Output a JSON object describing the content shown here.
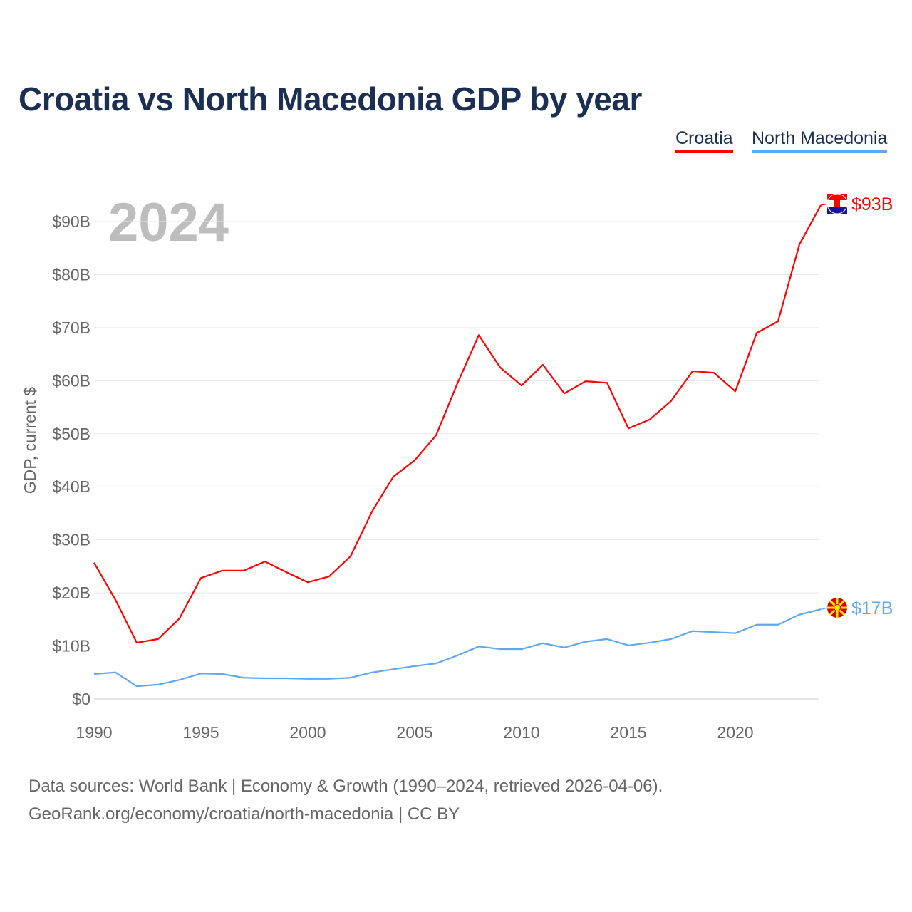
{
  "title": "Croatia vs North Macedonia GDP by year",
  "source_line1": "Data sources: World Bank | Economy & Growth (1990–2024, retrieved 2026-04-06).",
  "source_line2": "GeoRank.org/economy/croatia/north-macedonia | CC BY",
  "chart_data": {
    "type": "line",
    "title": "Croatia vs North Macedonia GDP by year",
    "ylabel": "GDP, current $",
    "xlabel": "",
    "year_label": "2024",
    "ylim": [
      0,
      95
    ],
    "xlim": [
      1990,
      2024
    ],
    "yticks": [
      0,
      10,
      20,
      30,
      40,
      50,
      60,
      70,
      80,
      90
    ],
    "ytick_labels": [
      "$0",
      "$10B",
      "$20B",
      "$30B",
      "$40B",
      "$50B",
      "$60B",
      "$70B",
      "$80B",
      "$90B"
    ],
    "xticks": [
      1990,
      1995,
      2000,
      2005,
      2010,
      2015,
      2020
    ],
    "xtick_labels": [
      "1990",
      "1995",
      "2000",
      "2005",
      "2010",
      "2015",
      "2020"
    ],
    "grid": true,
    "legend_position": "top-right",
    "x": [
      1990,
      1991,
      1992,
      1993,
      1994,
      1995,
      1996,
      1997,
      1998,
      1999,
      2000,
      2001,
      2002,
      2003,
      2004,
      2005,
      2006,
      2007,
      2008,
      2009,
      2010,
      2011,
      2012,
      2013,
      2014,
      2015,
      2016,
      2017,
      2018,
      2019,
      2020,
      2021,
      2022,
      2023,
      2024
    ],
    "series": [
      {
        "name": "Croatia",
        "color": "#ff0000",
        "end_label": "$93B",
        "values": [
          25.7,
          18.7,
          10.6,
          11.3,
          15.2,
          22.8,
          24.2,
          24.2,
          25.9,
          23.9,
          22.0,
          23.1,
          26.9,
          35.3,
          41.9,
          45.0,
          49.7,
          59.5,
          68.6,
          62.5,
          59.1,
          63.0,
          57.6,
          59.9,
          59.6,
          51.0,
          52.7,
          56.2,
          61.8,
          61.5,
          58.0,
          69.0,
          71.2,
          85.7,
          93.1
        ]
      },
      {
        "name": "North Macedonia",
        "color": "#5fa8ee",
        "end_label": "$17B",
        "values": [
          4.7,
          5.0,
          2.4,
          2.7,
          3.6,
          4.8,
          4.7,
          4.0,
          3.9,
          3.9,
          3.8,
          3.8,
          4.0,
          5.0,
          5.6,
          6.2,
          6.7,
          8.2,
          9.9,
          9.4,
          9.4,
          10.5,
          9.7,
          10.8,
          11.3,
          10.1,
          10.6,
          11.3,
          12.8,
          12.6,
          12.4,
          14.0,
          14.0,
          15.9,
          16.9
        ]
      }
    ]
  }
}
